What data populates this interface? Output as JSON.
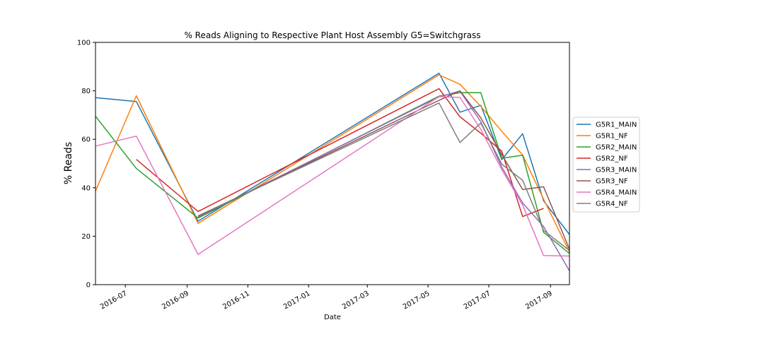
{
  "chart_data": {
    "type": "line",
    "title": "% Reads Aligning to Respective Plant Host Assembly G5=Switchgrass",
    "xlabel": "Date",
    "ylabel": "% Reads",
    "ylim": [
      0,
      100
    ],
    "xlim": [
      "2016-06-01",
      "2017-09-20"
    ],
    "yticks": [
      0,
      20,
      40,
      60,
      80,
      100
    ],
    "xticks": [
      "2016-07-01",
      "2016-09-01",
      "2016-11-01",
      "2017-01-01",
      "2017-03-01",
      "2017-05-01",
      "2017-07-01",
      "2017-09-01"
    ],
    "xtick_labels": [
      "2016-07",
      "2016-09",
      "2016-11",
      "2017-01",
      "2017-03",
      "2017-05",
      "2017-07",
      "2017-09"
    ],
    "legend_position": "center-right, outside plot",
    "grid": false,
    "series": [
      {
        "name": "G5R1_MAIN",
        "color": "#1f77b4",
        "points": [
          [
            "2016-06-01",
            77.2
          ],
          [
            "2016-07-12",
            75.6
          ],
          [
            "2016-09-12",
            26.2
          ],
          [
            "2017-05-12",
            87.3
          ],
          [
            "2017-06-02",
            71.2
          ],
          [
            "2017-06-23",
            74.0
          ],
          [
            "2017-07-14",
            51.6
          ],
          [
            "2017-08-04",
            62.3
          ],
          [
            "2017-08-25",
            34.6
          ],
          [
            "2017-09-20",
            20.7
          ]
        ]
      },
      {
        "name": "G5R1_NF",
        "color": "#ff7f0e",
        "points": [
          [
            "2016-06-01",
            38.6
          ],
          [
            "2016-07-12",
            78.0
          ],
          [
            "2016-09-12",
            25.3
          ],
          [
            "2017-05-12",
            86.6
          ],
          [
            "2017-06-02",
            82.7
          ],
          [
            "2017-06-23",
            73.6
          ],
          [
            "2017-07-14",
            63.3
          ],
          [
            "2017-08-04",
            53.5
          ],
          [
            "2017-08-25",
            35.3
          ],
          [
            "2017-09-20",
            13.5
          ]
        ]
      },
      {
        "name": "G5R2_MAIN",
        "color": "#2ca02c",
        "points": [
          [
            "2016-06-01",
            69.5
          ],
          [
            "2016-07-12",
            48.0
          ],
          [
            "2016-09-12",
            27.5
          ],
          [
            "2017-05-12",
            77.8
          ],
          [
            "2017-06-02",
            79.2
          ],
          [
            "2017-06-23",
            79.2
          ],
          [
            "2017-07-14",
            52.2
          ],
          [
            "2017-08-04",
            53.4
          ],
          [
            "2017-08-25",
            21.6
          ],
          [
            "2017-09-20",
            12.9
          ]
        ]
      },
      {
        "name": "G5R2_NF",
        "color": "#d62728",
        "points": [
          [
            "2016-07-12",
            51.7
          ],
          [
            "2016-09-12",
            30.2
          ],
          [
            "2017-05-12",
            80.9
          ],
          [
            "2017-06-02",
            69.3
          ],
          [
            "2017-06-23",
            62.5
          ],
          [
            "2017-07-14",
            55.1
          ],
          [
            "2017-08-04",
            28.1
          ],
          [
            "2017-08-25",
            31.5
          ]
        ]
      },
      {
        "name": "G5R3_MAIN",
        "color": "#9467bd",
        "points": [
          [
            "2016-09-12",
            27.9
          ],
          [
            "2017-05-12",
            77.5
          ],
          [
            "2017-06-02",
            79.9
          ],
          [
            "2017-06-23",
            67.2
          ],
          [
            "2017-07-14",
            48.5
          ],
          [
            "2017-08-04",
            33.7
          ],
          [
            "2017-08-25",
            24.0
          ],
          [
            "2017-09-20",
            5.7
          ]
        ]
      },
      {
        "name": "G5R3_NF",
        "color": "#8c564b",
        "points": [
          [
            "2016-09-12",
            28.2
          ],
          [
            "2017-05-12",
            76.1
          ],
          [
            "2017-06-02",
            80.0
          ],
          [
            "2017-06-23",
            68.8
          ],
          [
            "2017-07-14",
            53.7
          ],
          [
            "2017-08-04",
            39.3
          ],
          [
            "2017-08-25",
            40.4
          ],
          [
            "2017-09-20",
            14.6
          ]
        ]
      },
      {
        "name": "G5R4_MAIN",
        "color": "#e377c2",
        "points": [
          [
            "2016-06-01",
            57.2
          ],
          [
            "2016-07-12",
            61.3
          ],
          [
            "2016-09-12",
            12.5
          ],
          [
            "2017-05-12",
            77.6
          ],
          [
            "2017-06-02",
            77.3
          ],
          [
            "2017-06-23",
            64.1
          ],
          [
            "2017-07-14",
            47.5
          ],
          [
            "2017-08-04",
            32.9
          ],
          [
            "2017-08-25",
            12.0
          ],
          [
            "2017-09-20",
            11.8
          ]
        ]
      },
      {
        "name": "G5R4_NF",
        "color": "#7f7f7f",
        "points": [
          [
            "2016-09-12",
            28.4
          ],
          [
            "2017-05-12",
            75.0
          ],
          [
            "2017-06-02",
            58.7
          ],
          [
            "2017-06-23",
            66.7
          ],
          [
            "2017-07-14",
            49.7
          ],
          [
            "2017-08-04",
            43.1
          ],
          [
            "2017-08-25",
            22.4
          ],
          [
            "2017-09-20",
            14.1
          ]
        ]
      }
    ]
  }
}
